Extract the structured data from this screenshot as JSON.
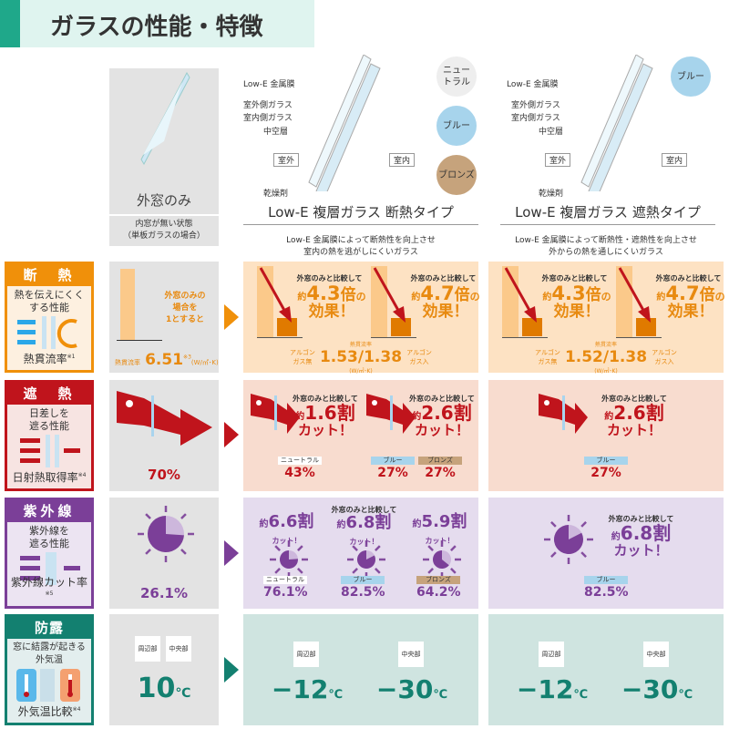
{
  "title": "ガラスの性能・特徴",
  "colors": {
    "insulation": "#f0900a",
    "solar": "#c0141c",
    "uv": "#7b3f98",
    "dew": "#138070"
  },
  "columns": {
    "single": {
      "label": "外窓のみ",
      "note": "内窓が無い状態\n（単板ガラスの場合）"
    },
    "insulating": {
      "caption": "Low-E 複層ガラス 断熱タイプ",
      "desc": "Low-E 金属膜によって断熱性を向上させ\n室内の熱を逃がしにくいガラス",
      "layers": [
        "Low-E 金属膜",
        "室外側ガラス",
        "室内側ガラス",
        "中空層",
        "乾燥剤"
      ],
      "outside": "室外",
      "inside": "室内",
      "colors": [
        "ニュー\nトラル",
        "ブルー",
        "ブロンズ"
      ]
    },
    "shading": {
      "caption": "Low-E 複層ガラス 遮熱タイプ",
      "desc": "Low-E 金属膜によって断熱性・遮熱性を向上させ\n外からの熱を通しにくいガラス",
      "layers": [
        "Low-E 金属膜",
        "室外側ガラス",
        "室内側ガラス",
        "中空層",
        "乾燥剤"
      ],
      "outside": "室外",
      "inside": "室内",
      "colors": [
        "ブルー"
      ]
    }
  },
  "rows": {
    "insulation": {
      "head": "断　熱",
      "desc": "熱を伝えにくく\nする性能",
      "foot": "熱貫流率",
      "note": "※1",
      "single_note": "外窓のみの\n場合を\n1とすると",
      "single_label": "熱貫流率",
      "single_value": "6.51",
      "single_mark": "※3",
      "single_unit": "(W/㎡･K)",
      "compare": "外窓のみと比較して",
      "effect": "効果！",
      "approx": "約",
      "times_suffix": "倍",
      "no": "の",
      "ins": {
        "a": "4.3",
        "b": "4.7",
        "label": "熱貫流率",
        "left": "アルゴン\nガス無",
        "value": "1.53/1.38",
        "right": "アルゴン\nガス入",
        "unit": "(W/㎡･K)"
      },
      "shd": {
        "a": "4.3",
        "b": "4.7",
        "label": "熱貫流率",
        "left": "アルゴン\nガス無",
        "value": "1.52/1.38",
        "right": "アルゴン\nガス入",
        "unit": "(W/㎡･K)"
      }
    },
    "solar": {
      "head": "遮　熱",
      "desc": "日差しを\n遮る性能",
      "foot": "日射熱取得率",
      "note": "※4",
      "single_value": "70%",
      "compare": "外窓のみと比較して",
      "cut": "カット！",
      "approx": "約",
      "ins": {
        "a": "1.6割",
        "b": "2.6割",
        "items": [
          {
            "tag": "ニュートラル",
            "value": "43%"
          },
          {
            "tag": "ブルー",
            "value": "27%"
          },
          {
            "tag": "ブロンズ",
            "value": "27%"
          }
        ]
      },
      "shd": {
        "a": "2.6割",
        "items": [
          {
            "tag": "ブルー",
            "value": "27%"
          }
        ]
      }
    },
    "uv": {
      "head": "紫外線",
      "desc": "紫外線を\n遮る性能",
      "foot": "紫外線カット率",
      "note": "※5",
      "single_value": "26.1%",
      "compare": "外窓のみと比較して",
      "cut": "カット！",
      "approx": "約",
      "ins": {
        "items": [
          {
            "big": "6.6割",
            "tag": "ニュートラル",
            "value": "76.1%"
          },
          {
            "big": "6.8割",
            "tag": "ブルー",
            "value": "82.5%"
          },
          {
            "big": "5.9割",
            "tag": "ブロンズ",
            "value": "64.2%"
          }
        ]
      },
      "shd": {
        "big": "6.8割",
        "tag": "ブルー",
        "value": "82.5%"
      }
    },
    "dew": {
      "head": "防露",
      "desc": "窓に結露が起きる\n外気温",
      "foot": "外気温比較",
      "note": "※4",
      "edge": "周辺部",
      "center": "中央部",
      "single_value": "10",
      "unit": "℃",
      "ins": {
        "edge": "−12",
        "center": "−30"
      },
      "shd": {
        "edge": "−12",
        "center": "−30"
      }
    }
  }
}
